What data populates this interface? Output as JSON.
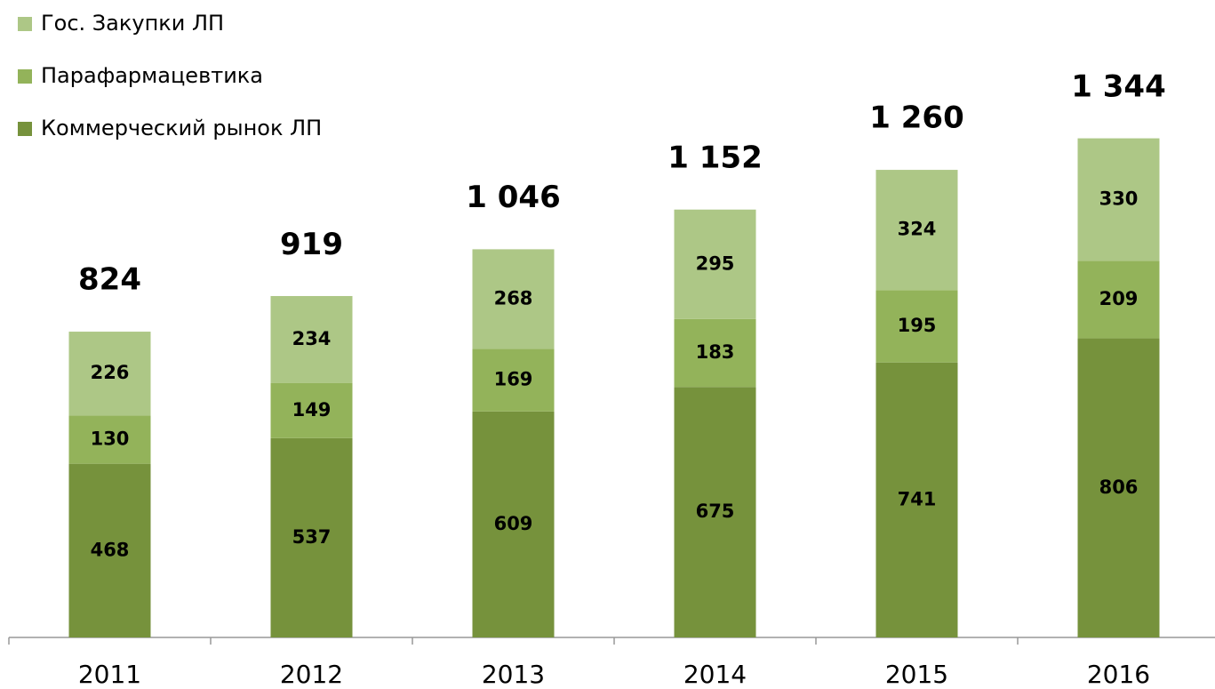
{
  "chart_data": {
    "type": "stacked_bar",
    "categories": [
      "2011",
      "2012",
      "2013",
      "2014",
      "2015",
      "2016"
    ],
    "series": [
      {
        "name": "Коммерческий рынок ЛП",
        "color": "#76923c",
        "values": [
          468,
          537,
          609,
          675,
          741,
          806
        ]
      },
      {
        "name": "Парафармацевтика",
        "color": "#93b35a",
        "values": [
          130,
          149,
          169,
          183,
          195,
          209
        ]
      },
      {
        "name": "Гос. Закупки ЛП",
        "color": "#adc786",
        "values": [
          226,
          234,
          268,
          295,
          324,
          330
        ]
      }
    ],
    "totals": [
      824,
      919,
      1046,
      1152,
      1260,
      1344
    ],
    "total_labels": [
      "824",
      "919",
      "1 046",
      "1 152",
      "1 260",
      "1 344"
    ]
  }
}
